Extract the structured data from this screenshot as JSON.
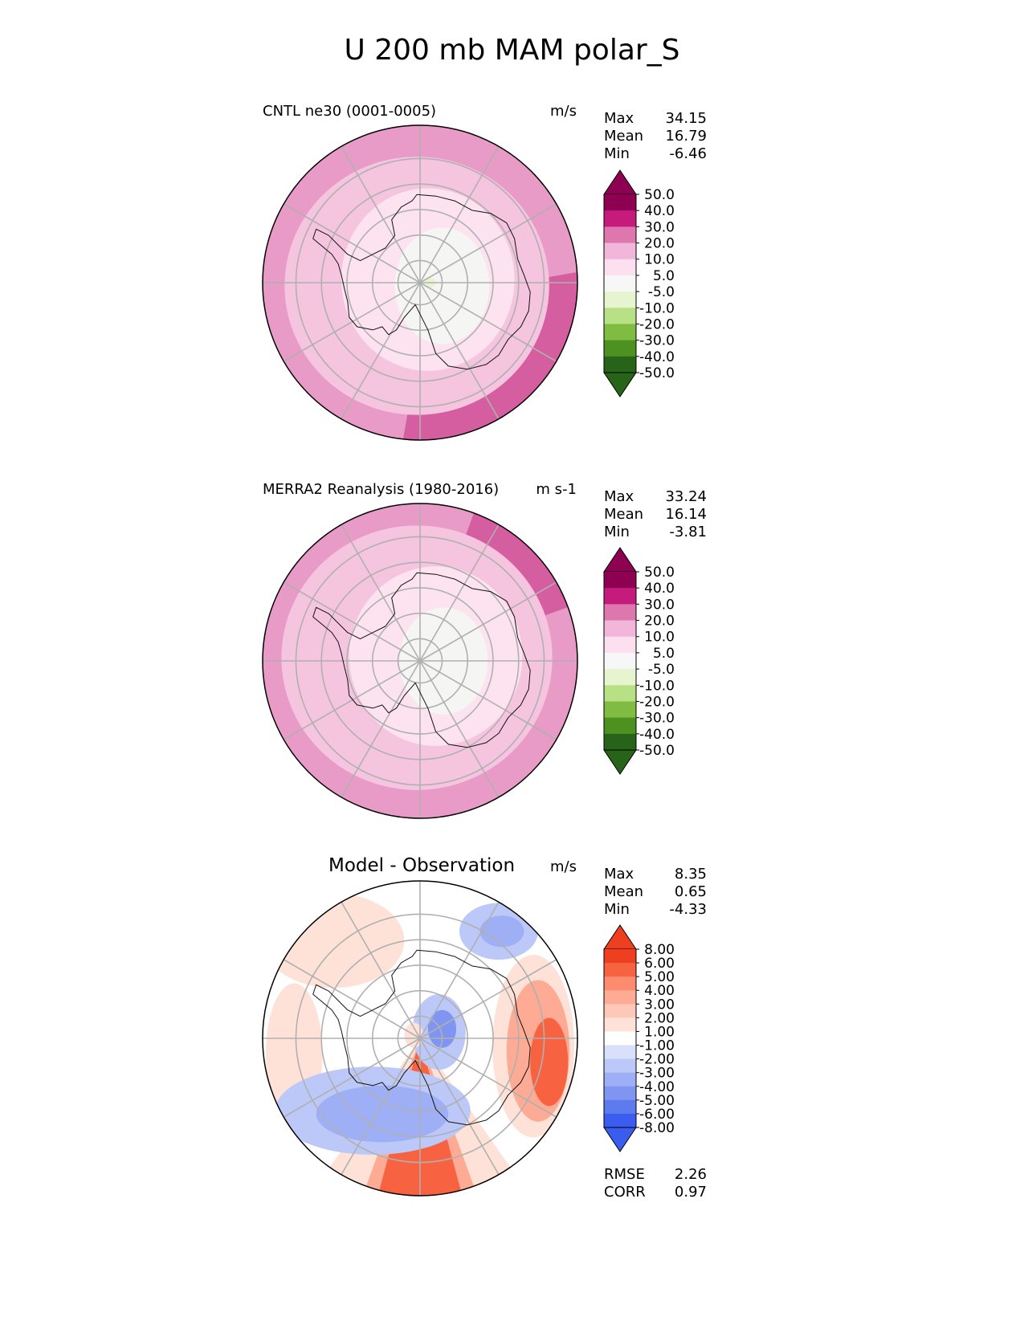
{
  "title": "U 200 mb MAM polar_S",
  "panels": [
    {
      "id": "test",
      "title": "CNTL ne30 (0001-0005)",
      "units": "m/s",
      "stats": [
        {
          "label": "Max",
          "value": "34.15"
        },
        {
          "label": "Mean",
          "value": "16.79"
        },
        {
          "label": "Min",
          "value": "-6.46"
        }
      ]
    },
    {
      "id": "ref",
      "title": "MERRA2 Reanalysis (1980-2016)",
      "units": "m s-1",
      "stats": [
        {
          "label": "Max",
          "value": "33.24"
        },
        {
          "label": "Mean",
          "value": "16.14"
        },
        {
          "label": "Min",
          "value": "-3.81"
        }
      ]
    },
    {
      "id": "diff",
      "title": "Model - Observation",
      "units": "m/s",
      "stats": [
        {
          "label": "Max",
          "value": "8.35"
        },
        {
          "label": "Mean",
          "value": "0.65"
        },
        {
          "label": "Min",
          "value": "-4.33"
        }
      ],
      "metrics": [
        {
          "label": "RMSE",
          "value": "2.26"
        },
        {
          "label": "CORR",
          "value": "0.97"
        }
      ]
    }
  ],
  "chart_data": [
    {
      "type": "heatmap",
      "projection": "south-polar-stereographic",
      "title": "CNTL ne30 (0001-0005)",
      "variable": "U 200 mb",
      "season": "MAM",
      "units": "m/s",
      "colorbar": {
        "levels": [
          "50.0",
          "40.0",
          "30.0",
          "20.0",
          "10.0",
          "5.0",
          "-5.0",
          "-10.0",
          "-20.0",
          "-30.0",
          "-40.0",
          "-50.0"
        ],
        "colors": [
          "#8e0152",
          "#c51b7d",
          "#de77ae",
          "#f1b6da",
          "#fde0ef",
          "#f7f7f7",
          "#e6f5d0",
          "#b8e186",
          "#7fbc41",
          "#4d9221",
          "#276419"
        ],
        "extend": "both"
      },
      "regions": [
        {
          "level": "20-30",
          "color": "#e99bc7",
          "description": "outer ring near 50S"
        },
        {
          "level": "30-40",
          "color": "#d55ea1",
          "description": "east / south-east sector near 50S"
        },
        {
          "level": "10-20",
          "color": "#f5c5e0",
          "description": "mid-latitude ring"
        },
        {
          "level": "5-10",
          "color": "#fce3ef",
          "description": "over Antarctic interior"
        },
        {
          "level": "-5-5",
          "color": "#f5f5f3",
          "description": "near pole"
        }
      ]
    },
    {
      "type": "heatmap",
      "projection": "south-polar-stereographic",
      "title": "MERRA2 Reanalysis (1980-2016)",
      "variable": "U 200 mb",
      "season": "MAM",
      "units": "m s-1",
      "colorbar": {
        "levels": [
          "50.0",
          "40.0",
          "30.0",
          "20.0",
          "10.0",
          "5.0",
          "-5.0",
          "-10.0",
          "-20.0",
          "-30.0",
          "-40.0",
          "-50.0"
        ],
        "colors": [
          "#8e0152",
          "#c51b7d",
          "#de77ae",
          "#f1b6da",
          "#fde0ef",
          "#f7f7f7",
          "#e6f5d0",
          "#b8e186",
          "#7fbc41",
          "#4d9221",
          "#276419"
        ],
        "extend": "both"
      },
      "regions": [
        {
          "level": "20-30",
          "color": "#e99bc7",
          "description": "outer ring"
        },
        {
          "level": "30-40",
          "color": "#d55ea1",
          "description": "north-east edge"
        },
        {
          "level": "10-20",
          "color": "#f5c5e0",
          "description": "mid-latitude ring"
        },
        {
          "level": "5-10",
          "color": "#fce3ef",
          "description": "over Antarctic interior"
        },
        {
          "level": "-5-5",
          "color": "#f5f5f3",
          "description": "near pole"
        }
      ]
    },
    {
      "type": "heatmap",
      "projection": "south-polar-stereographic",
      "title": "Model - Observation",
      "units": "m/s",
      "colorbar": {
        "levels": [
          "8.00",
          "6.00",
          "5.00",
          "4.00",
          "3.00",
          "2.00",
          "1.00",
          "-1.00",
          "-2.00",
          "-3.00",
          "-4.00",
          "-5.00",
          "-6.00",
          "-8.00"
        ],
        "colors": [
          "#ee4020",
          "#f76340",
          "#fc8b6f",
          "#fdab95",
          "#fdc8b8",
          "#fee2d8",
          "#ffffff",
          "#d9e0fb",
          "#bcc8f8",
          "#9eaff5",
          "#7f95f1",
          "#5d7aee",
          "#3b5def"
        ],
        "extend": "both"
      },
      "regions": [
        {
          "level": "6-8",
          "color": "#f76340",
          "description": "southern outer edge"
        },
        {
          "level": "3-5",
          "color": "#fc8b6f",
          "description": "eastern sector"
        },
        {
          "level": "1-2",
          "color": "#fee2d8",
          "description": "north-west and outer ring"
        },
        {
          "level": "-2--4",
          "color": "#9eaff5",
          "description": "south of pole"
        },
        {
          "level": "-1--3",
          "color": "#bcc8f8",
          "description": "north-east and near pole"
        }
      ]
    }
  ]
}
